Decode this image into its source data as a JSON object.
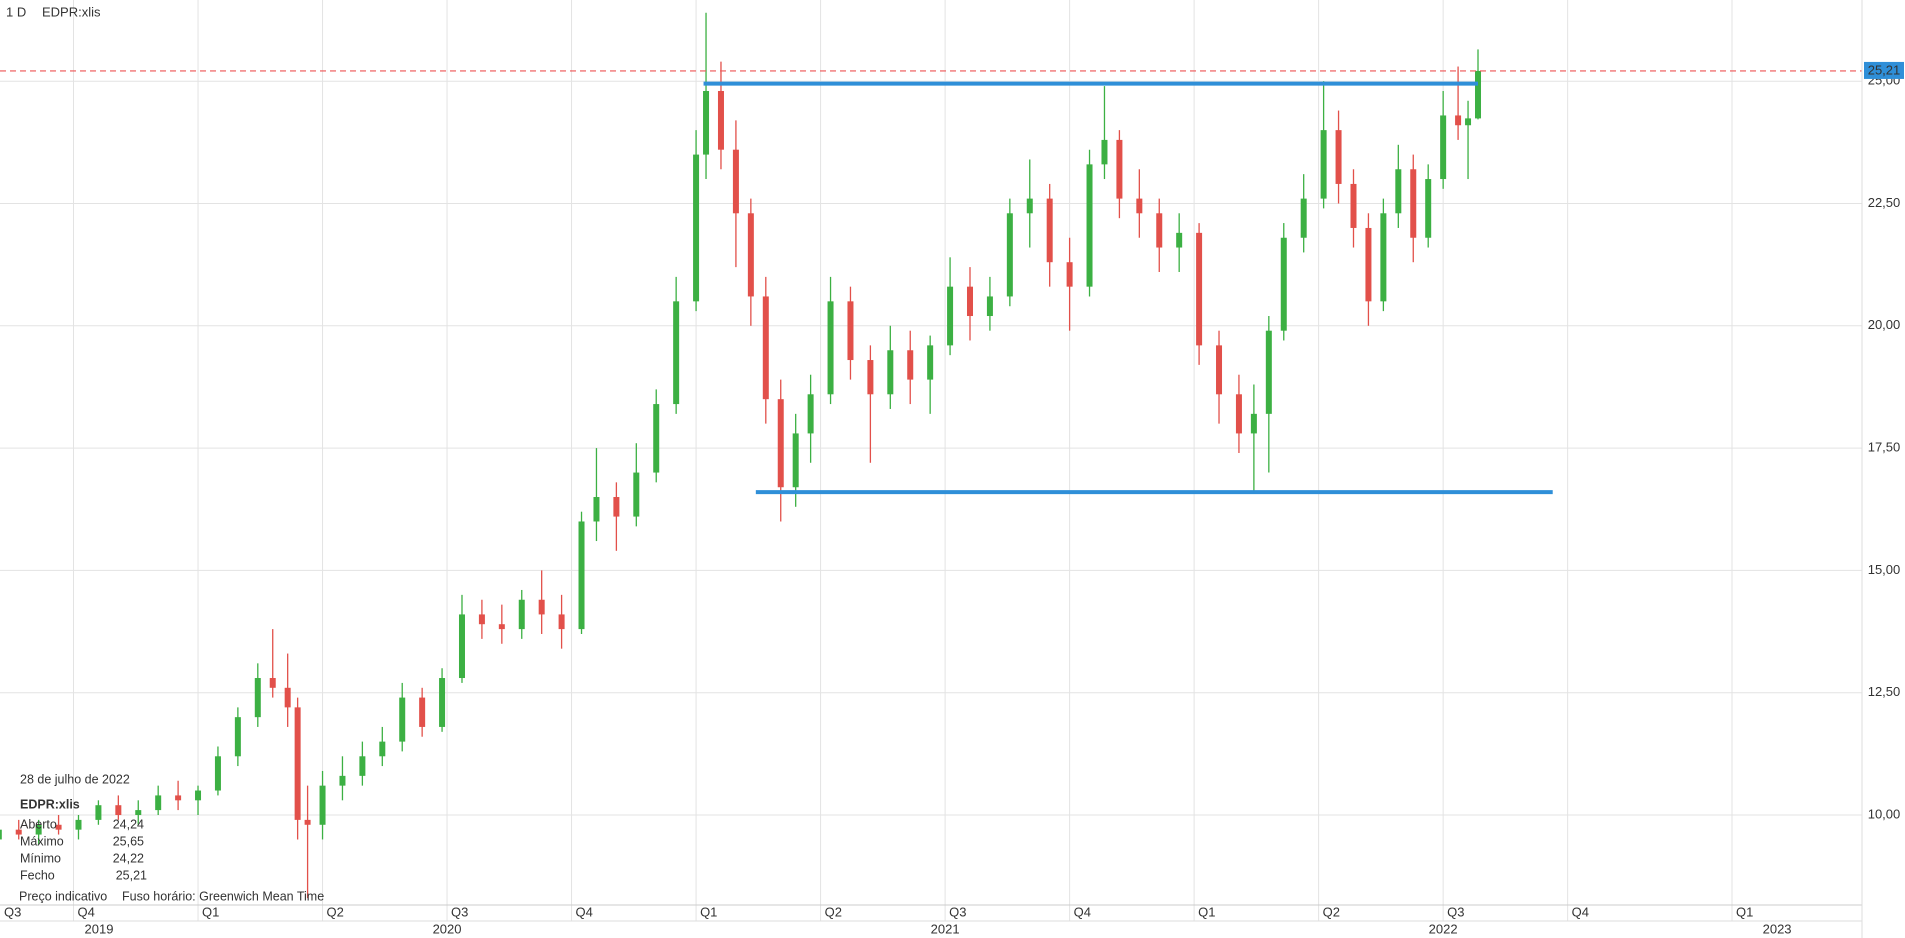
{
  "header": {
    "interval": "1 D",
    "symbol": "EDPR:xlis"
  },
  "info": {
    "date": "28 de julho de 2022",
    "symbol": "EDPR:xlis",
    "rows": [
      {
        "label": "Aberto",
        "value": "24,24"
      },
      {
        "label": "Máximo",
        "value": "25,65"
      },
      {
        "label": "Mínimo",
        "value": "24,22"
      },
      {
        "label": "Fecho",
        "value": "25,21"
      }
    ],
    "note": "Preço indicativo",
    "timezone": "Fuso horário: Greenwich Mean Time"
  },
  "chart_data": {
    "type": "candlestick",
    "up_color": "#3cb043",
    "down_color": "#e2504a",
    "grid": true,
    "xlim": [
      2019.6024,
      2023.341
    ],
    "ylim": [
      8.16,
      26.66
    ],
    "yticks": [
      {
        "value": 10,
        "label": "10,00"
      },
      {
        "value": 12.5,
        "label": "12,50"
      },
      {
        "value": 15,
        "label": "15,00"
      },
      {
        "value": 17.5,
        "label": "17,50"
      },
      {
        "value": 20,
        "label": "20,00"
      },
      {
        "value": 22.5,
        "label": "22,50"
      },
      {
        "value": 25,
        "label": "25,00"
      }
    ],
    "xticks": [
      {
        "value": 2019.5,
        "label": "Q3"
      },
      {
        "value": 2019.75,
        "label": "Q4"
      },
      {
        "value": 2020,
        "label": "Q1"
      },
      {
        "value": 2020.25,
        "label": "Q2"
      },
      {
        "value": 2020.5,
        "label": "Q3"
      },
      {
        "value": 2020.75,
        "label": "Q4"
      },
      {
        "value": 2021,
        "label": "Q1"
      },
      {
        "value": 2021.25,
        "label": "Q2"
      },
      {
        "value": 2021.5,
        "label": "Q3"
      },
      {
        "value": 2021.75,
        "label": "Q4"
      },
      {
        "value": 2022,
        "label": "Q1"
      },
      {
        "value": 2022.25,
        "label": "Q2"
      },
      {
        "value": 2022.5,
        "label": "Q3"
      },
      {
        "value": 2022.75,
        "label": "Q4"
      },
      {
        "value": 2023.08,
        "label": "Q1"
      }
    ],
    "year_ticks": [
      {
        "value": 2019,
        "label": "2019"
      },
      {
        "value": 2020,
        "label": "2020"
      },
      {
        "value": 2021,
        "label": "2021"
      },
      {
        "value": 2022,
        "label": "2022"
      },
      {
        "value": 2023,
        "label": "2023"
      }
    ],
    "last_price": {
      "value": 25.21,
      "label": "25,21"
    },
    "levels": [
      {
        "value": 24.95,
        "x": [
          2021.015,
          2022.57
        ]
      },
      {
        "value": 16.6,
        "x": [
          2021.12,
          2022.72
        ]
      }
    ],
    "x": [
      2019.6,
      2019.64,
      2019.68,
      2019.72,
      2019.76,
      2019.8,
      2019.84,
      2019.88,
      2019.92,
      2019.96,
      2020.0,
      2020.04,
      2020.08,
      2020.12,
      2020.15,
      2020.18,
      2020.2,
      2020.22,
      2020.25,
      2020.29,
      2020.33,
      2020.37,
      2020.41,
      2020.45,
      2020.49,
      2020.53,
      2020.57,
      2020.61,
      2020.65,
      2020.69,
      2020.73,
      2020.77,
      2020.8,
      2020.84,
      2020.88,
      2020.92,
      2020.96,
      2021.0,
      2021.02,
      2021.05,
      2021.08,
      2021.11,
      2021.14,
      2021.17,
      2021.2,
      2021.23,
      2021.27,
      2021.31,
      2021.35,
      2021.39,
      2021.43,
      2021.47,
      2021.51,
      2021.55,
      2021.59,
      2021.63,
      2021.67,
      2021.71,
      2021.75,
      2021.79,
      2021.82,
      2021.85,
      2021.89,
      2021.93,
      2021.97,
      2022.01,
      2022.05,
      2022.09,
      2022.12,
      2022.15,
      2022.18,
      2022.22,
      2022.26,
      2022.29,
      2022.32,
      2022.35,
      2022.38,
      2022.41,
      2022.44,
      2022.47,
      2022.5,
      2022.53,
      2022.55,
      2022.57
    ],
    "open": [
      9.5,
      9.7,
      9.6,
      9.8,
      9.7,
      9.9,
      10.2,
      10.0,
      10.1,
      10.4,
      10.3,
      10.5,
      11.2,
      12.0,
      12.8,
      12.6,
      12.2,
      9.9,
      9.8,
      10.6,
      10.8,
      11.2,
      11.5,
      12.4,
      11.8,
      12.8,
      14.1,
      13.9,
      13.8,
      14.4,
      14.1,
      13.8,
      16.0,
      16.5,
      16.1,
      17.0,
      18.4,
      20.5,
      23.5,
      24.8,
      23.6,
      22.3,
      20.6,
      18.5,
      16.7,
      17.8,
      18.6,
      20.5,
      19.3,
      18.6,
      19.5,
      18.9,
      19.6,
      20.8,
      20.2,
      20.6,
      22.3,
      22.6,
      21.3,
      20.8,
      23.3,
      23.8,
      22.6,
      22.3,
      21.6,
      21.9,
      19.6,
      18.6,
      17.8,
      18.2,
      19.9,
      21.8,
      22.6,
      24.0,
      22.9,
      22.0,
      20.5,
      22.3,
      23.2,
      21.8,
      23.0,
      24.3,
      24.1,
      24.24
    ],
    "high": [
      9.9,
      9.9,
      9.9,
      10.0,
      10.0,
      10.3,
      10.4,
      10.3,
      10.6,
      10.7,
      10.6,
      11.4,
      12.2,
      13.1,
      13.8,
      13.3,
      12.4,
      10.6,
      10.9,
      11.2,
      11.5,
      11.8,
      12.7,
      12.6,
      13.0,
      14.5,
      14.4,
      14.3,
      14.6,
      15.0,
      14.5,
      16.2,
      17.5,
      16.8,
      17.6,
      18.7,
      21.0,
      24.0,
      26.4,
      25.4,
      24.2,
      22.6,
      21.0,
      18.9,
      18.2,
      19.0,
      21.0,
      20.8,
      19.6,
      20.0,
      19.9,
      19.8,
      21.4,
      21.2,
      21.0,
      22.6,
      23.4,
      22.9,
      21.8,
      23.6,
      24.9,
      24.0,
      23.2,
      22.6,
      22.3,
      22.1,
      19.9,
      19.0,
      18.8,
      20.2,
      22.1,
      23.1,
      25.0,
      24.4,
      23.2,
      22.3,
      22.6,
      23.7,
      23.5,
      23.3,
      24.8,
      25.3,
      24.6,
      25.65
    ],
    "low": [
      9.3,
      9.5,
      9.4,
      9.6,
      9.5,
      9.8,
      9.9,
      9.8,
      10.0,
      10.1,
      10.0,
      10.4,
      11.0,
      11.8,
      12.4,
      11.8,
      9.5,
      8.3,
      9.5,
      10.3,
      10.6,
      11.0,
      11.3,
      11.6,
      11.7,
      12.7,
      13.6,
      13.5,
      13.6,
      13.7,
      13.4,
      13.7,
      15.6,
      15.4,
      15.9,
      16.8,
      18.2,
      20.3,
      23.0,
      23.2,
      21.2,
      20.0,
      18.0,
      16.0,
      16.3,
      17.2,
      18.4,
      18.9,
      17.2,
      18.3,
      18.4,
      18.2,
      19.4,
      19.7,
      19.9,
      20.4,
      21.6,
      20.8,
      19.9,
      20.6,
      23.0,
      22.2,
      21.8,
      21.1,
      21.1,
      19.2,
      18.0,
      17.4,
      16.6,
      17.0,
      19.7,
      21.5,
      22.4,
      22.5,
      21.6,
      20.0,
      20.3,
      22.0,
      21.3,
      21.6,
      22.8,
      23.8,
      23.0,
      24.22
    ],
    "close": [
      9.7,
      9.6,
      9.8,
      9.7,
      9.9,
      10.2,
      10.0,
      10.1,
      10.4,
      10.3,
      10.5,
      11.2,
      12.0,
      12.8,
      12.6,
      12.2,
      9.9,
      9.8,
      10.6,
      10.8,
      11.2,
      11.5,
      12.4,
      11.8,
      12.8,
      14.1,
      13.9,
      13.8,
      14.4,
      14.1,
      13.8,
      16.0,
      16.5,
      16.1,
      17.0,
      18.4,
      20.5,
      23.5,
      24.8,
      23.6,
      22.3,
      20.6,
      18.5,
      16.7,
      17.8,
      18.6,
      20.5,
      19.3,
      18.6,
      19.5,
      18.9,
      19.6,
      20.8,
      20.2,
      20.6,
      22.3,
      22.6,
      21.3,
      20.8,
      23.3,
      23.8,
      22.6,
      22.3,
      21.6,
      21.9,
      19.6,
      18.6,
      17.8,
      18.2,
      19.9,
      21.8,
      22.6,
      24.0,
      22.9,
      22.0,
      20.5,
      22.3,
      23.2,
      21.8,
      23.0,
      24.3,
      24.1,
      24.24,
      25.21
    ]
  }
}
